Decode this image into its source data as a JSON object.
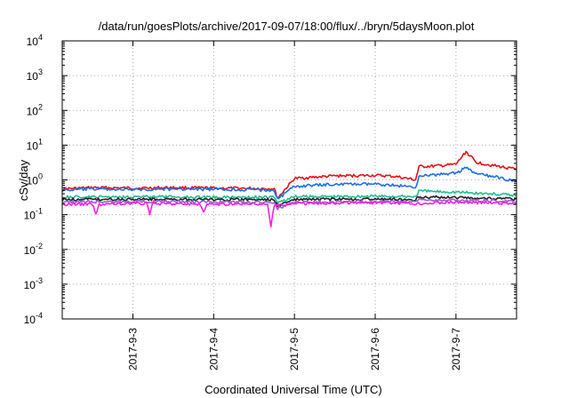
{
  "chart_data": {
    "type": "line",
    "title": "/data/run/goesPlots/archive/2017-09-07/18:00/flux/../bryn/5daysMoon.plot",
    "xlabel": "Coordinated Universal Time (UTC)",
    "ylabel": "cSv/day",
    "y_scale": "log",
    "ylim": [
      0.0001,
      10000
    ],
    "y_ticks": [
      {
        "base": "10",
        "exp": "-4"
      },
      {
        "base": "10",
        "exp": "-3"
      },
      {
        "base": "10",
        "exp": "-2"
      },
      {
        "base": "10",
        "exp": "-1"
      },
      {
        "base": "10",
        "exp": "0"
      },
      {
        "base": "10",
        "exp": "1"
      },
      {
        "base": "10",
        "exp": "2"
      },
      {
        "base": "10",
        "exp": "3"
      },
      {
        "base": "10",
        "exp": "4"
      }
    ],
    "xlim": [
      "2017-09-02 03:00",
      "2017-09-07 18:00"
    ],
    "x_ticks": [
      "2017-9-3",
      "2017-9-4",
      "2017-9-5",
      "2017-9-6",
      "2017-9-7"
    ],
    "grid": true,
    "legend": "none",
    "series": [
      {
        "color": "#e8101a",
        "x": [
          "2017-09-02 03:00",
          "2017-09-02 12:00",
          "2017-09-03 00:00",
          "2017-09-03 12:00",
          "2017-09-04 00:00",
          "2017-09-04 12:00",
          "2017-09-04 18:00",
          "2017-09-04 19:00",
          "2017-09-05 00:00",
          "2017-09-05 12:00",
          "2017-09-06 00:00",
          "2017-09-06 06:00",
          "2017-09-06 12:00",
          "2017-09-06 13:00",
          "2017-09-06 18:00",
          "2017-09-07 00:00",
          "2017-09-07 03:00",
          "2017-09-07 06:00",
          "2017-09-07 12:00",
          "2017-09-07 18:00"
        ],
        "values": [
          0.55,
          0.6,
          0.58,
          0.6,
          0.58,
          0.57,
          0.56,
          0.3,
          1.1,
          1.3,
          1.35,
          1.25,
          1.0,
          2.4,
          2.5,
          2.8,
          6.5,
          3.2,
          2.5,
          2.0
        ]
      },
      {
        "color": "#1f6ee8",
        "x": [
          "2017-09-02 03:00",
          "2017-09-02 12:00",
          "2017-09-03 00:00",
          "2017-09-03 12:00",
          "2017-09-04 00:00",
          "2017-09-04 12:00",
          "2017-09-04 18:00",
          "2017-09-04 19:00",
          "2017-09-05 00:00",
          "2017-09-05 12:00",
          "2017-09-06 00:00",
          "2017-09-06 06:00",
          "2017-09-06 12:00",
          "2017-09-06 13:00",
          "2017-09-06 18:00",
          "2017-09-07 00:00",
          "2017-09-07 03:00",
          "2017-09-07 06:00",
          "2017-09-07 12:00",
          "2017-09-07 18:00"
        ],
        "values": [
          0.5,
          0.55,
          0.52,
          0.55,
          0.53,
          0.52,
          0.5,
          0.28,
          0.65,
          0.75,
          0.75,
          0.7,
          0.6,
          1.3,
          1.4,
          1.6,
          2.2,
          1.5,
          1.2,
          0.9
        ]
      },
      {
        "color": "#1fbf8f",
        "x": [
          "2017-09-02 03:00",
          "2017-09-03 00:00",
          "2017-09-04 00:00",
          "2017-09-04 18:00",
          "2017-09-04 19:00",
          "2017-09-05 00:00",
          "2017-09-06 00:00",
          "2017-09-06 12:00",
          "2017-09-06 13:00",
          "2017-09-07 00:00",
          "2017-09-07 18:00"
        ],
        "values": [
          0.32,
          0.33,
          0.32,
          0.32,
          0.22,
          0.33,
          0.34,
          0.33,
          0.48,
          0.45,
          0.36
        ]
      },
      {
        "color": "#222222",
        "x": [
          "2017-09-02 03:00",
          "2017-09-03 00:00",
          "2017-09-04 00:00",
          "2017-09-04 18:00",
          "2017-09-04 19:00",
          "2017-09-05 00:00",
          "2017-09-06 00:00",
          "2017-09-06 12:00",
          "2017-09-06 13:00",
          "2017-09-07 00:00",
          "2017-09-07 18:00"
        ],
        "values": [
          0.27,
          0.28,
          0.27,
          0.27,
          0.18,
          0.27,
          0.28,
          0.27,
          0.33,
          0.31,
          0.28
        ]
      },
      {
        "color": "#9a5bd6",
        "x": [
          "2017-09-02 03:00",
          "2017-09-03 00:00",
          "2017-09-04 00:00",
          "2017-09-04 18:00",
          "2017-09-04 19:00",
          "2017-09-05 00:00",
          "2017-09-06 00:00",
          "2017-09-06 12:00",
          "2017-09-06 13:00",
          "2017-09-07 00:00",
          "2017-09-07 18:00"
        ],
        "values": [
          0.23,
          0.24,
          0.23,
          0.23,
          0.15,
          0.23,
          0.24,
          0.23,
          0.27,
          0.26,
          0.24
        ]
      },
      {
        "color": "#ff1fe4",
        "x": [
          "2017-09-02 03:00",
          "2017-09-02 12:00",
          "2017-09-02 13:00",
          "2017-09-02 14:00",
          "2017-09-03 00:00",
          "2017-09-03 04:00",
          "2017-09-03 05:00",
          "2017-09-03 06:00",
          "2017-09-03 20:00",
          "2017-09-03 21:00",
          "2017-09-03 22:00",
          "2017-09-04 16:00",
          "2017-09-04 17:00",
          "2017-09-04 18:00",
          "2017-09-04 19:00",
          "2017-09-05 00:00",
          "2017-09-06 00:00",
          "2017-09-06 12:00",
          "2017-09-07 00:00",
          "2017-09-07 18:00"
        ],
        "values": [
          0.2,
          0.2,
          0.1,
          0.2,
          0.21,
          0.21,
          0.11,
          0.21,
          0.2,
          0.11,
          0.2,
          0.2,
          0.045,
          0.19,
          0.18,
          0.21,
          0.22,
          0.21,
          0.23,
          0.21
        ]
      }
    ]
  }
}
